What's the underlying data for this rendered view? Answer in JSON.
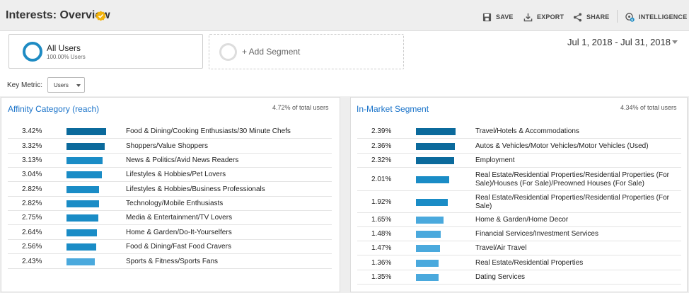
{
  "header": {
    "title": "Interests: Overview",
    "actions": {
      "save": "SAVE",
      "export": "EXPORT",
      "share": "SHARE",
      "intelligence": "INTELLIGENCE"
    }
  },
  "segments": {
    "active": {
      "name": "All Users",
      "share": "100.00% Users"
    },
    "add_label": "+ Add Segment"
  },
  "date_range": "Jul 1, 2018 - Jul 31, 2018",
  "key_metric": {
    "label": "Key Metric:",
    "value": "Users"
  },
  "colors": {
    "accent": "#1e8bc3",
    "bar_dark": "#0b6a9c",
    "bar_mid": "#1a8cc6",
    "bar_light": "#4aa9dd",
    "link": "#1a73c9"
  },
  "affinity": {
    "title": "Affinity Category (reach)",
    "total": "4.72% of total users",
    "rows": [
      {
        "pct": "3.42%",
        "value": 3.42,
        "label": "Food & Dining/Cooking Enthusiasts/30 Minute Chefs"
      },
      {
        "pct": "3.32%",
        "value": 3.32,
        "label": "Shoppers/Value Shoppers"
      },
      {
        "pct": "3.13%",
        "value": 3.13,
        "label": "News & Politics/Avid News Readers"
      },
      {
        "pct": "3.04%",
        "value": 3.04,
        "label": "Lifestyles & Hobbies/Pet Lovers"
      },
      {
        "pct": "2.82%",
        "value": 2.82,
        "label": "Lifestyles & Hobbies/Business Professionals"
      },
      {
        "pct": "2.82%",
        "value": 2.82,
        "label": "Technology/Mobile Enthusiasts"
      },
      {
        "pct": "2.75%",
        "value": 2.75,
        "label": "Media & Entertainment/TV Lovers"
      },
      {
        "pct": "2.64%",
        "value": 2.64,
        "label": "Home & Garden/Do-It-Yourselfers"
      },
      {
        "pct": "2.56%",
        "value": 2.56,
        "label": "Food & Dining/Fast Food Cravers"
      },
      {
        "pct": "2.43%",
        "value": 2.43,
        "label": "Sports & Fitness/Sports Fans"
      }
    ]
  },
  "in_market": {
    "title": "In-Market Segment",
    "total": "4.34% of total users",
    "rows": [
      {
        "pct": "2.39%",
        "value": 2.39,
        "label": "Travel/Hotels & Accommodations"
      },
      {
        "pct": "2.36%",
        "value": 2.36,
        "label": "Autos & Vehicles/Motor Vehicles/Motor Vehicles (Used)"
      },
      {
        "pct": "2.32%",
        "value": 2.32,
        "label": "Employment"
      },
      {
        "pct": "2.01%",
        "value": 2.01,
        "label": "Real Estate/Residential Properties/Residential Properties (For Sale)/Houses (For Sale)/Preowned Houses (For Sale)"
      },
      {
        "pct": "1.92%",
        "value": 1.92,
        "label": "Real Estate/Residential Properties/Residential Properties (For Sale)"
      },
      {
        "pct": "1.65%",
        "value": 1.65,
        "label": "Home & Garden/Home Decor"
      },
      {
        "pct": "1.48%",
        "value": 1.48,
        "label": "Financial Services/Investment Services"
      },
      {
        "pct": "1.47%",
        "value": 1.47,
        "label": "Travel/Air Travel"
      },
      {
        "pct": "1.36%",
        "value": 1.36,
        "label": "Real Estate/Residential Properties"
      },
      {
        "pct": "1.35%",
        "value": 1.35,
        "label": "Dating Services"
      }
    ]
  }
}
